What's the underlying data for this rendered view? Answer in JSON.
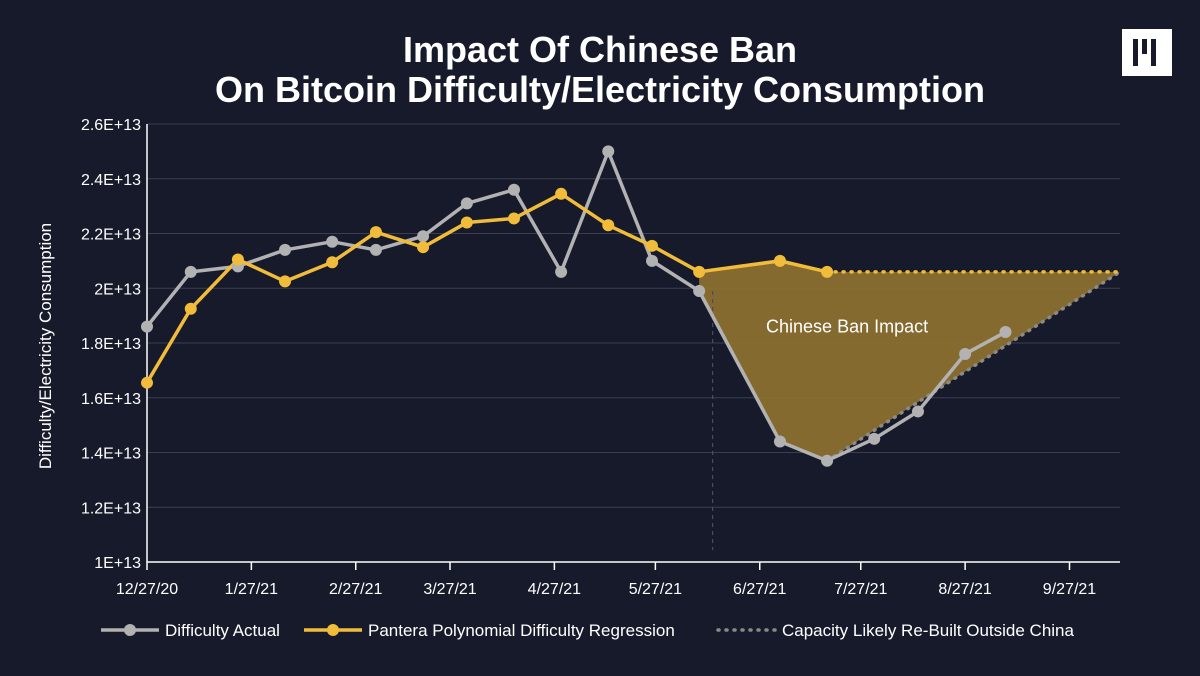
{
  "title_lines": [
    "Impact Of Chinese Ban",
    "On Bitcoin Difficulty/Electricity Consumption"
  ],
  "logo": {
    "icon": "pantera-logo-icon",
    "color": "#ffffff"
  },
  "colors": {
    "background": "#161a2b",
    "difficulty_actual": "#b2b2b2",
    "regression": "#f2bc3b",
    "capacity": "#8a8a8a",
    "impact_fill": "#8b6f2f",
    "grid": "#3a3e4e"
  },
  "chart_data": {
    "type": "line",
    "title": "Impact Of Chinese Ban On Bitcoin Difficulty/Electricity Consumption",
    "ylabel": "Difficulty/Electricity Consumption",
    "xlabel": "",
    "x_type": "date",
    "xlim": [
      "2020-12-27",
      "2021-10-12"
    ],
    "ylim": [
      10000000000000.0,
      26000000000000.0
    ],
    "grid": true,
    "legend_position": "bottom",
    "x_ticks": [
      {
        "date": "2020-12-27",
        "label": "12/27/20"
      },
      {
        "date": "2021-01-27",
        "label": "1/27/21"
      },
      {
        "date": "2021-02-27",
        "label": "2/27/21"
      },
      {
        "date": "2021-03-27",
        "label": "3/27/21"
      },
      {
        "date": "2021-04-27",
        "label": "4/27/21"
      },
      {
        "date": "2021-05-27",
        "label": "5/27/21"
      },
      {
        "date": "2021-06-27",
        "label": "6/27/21"
      },
      {
        "date": "2021-07-27",
        "label": "7/27/21"
      },
      {
        "date": "2021-08-27",
        "label": "8/27/21"
      },
      {
        "date": "2021-09-27",
        "label": "9/27/21"
      }
    ],
    "y_ticks": [
      {
        "value": 10000000000000.0,
        "label": "1E+13"
      },
      {
        "value": 12000000000000.0,
        "label": "1.2E+13"
      },
      {
        "value": 14000000000000.0,
        "label": "1.4E+13"
      },
      {
        "value": 16000000000000.0,
        "label": "1.6E+13"
      },
      {
        "value": 18000000000000.0,
        "label": "1.8E+13"
      },
      {
        "value": 20000000000000.0,
        "label": "2E+13"
      },
      {
        "value": 22000000000000.0,
        "label": "2.2E+13"
      },
      {
        "value": 24000000000000.0,
        "label": "2.4E+13"
      },
      {
        "value": 26000000000000.0,
        "label": "2.6E+13"
      }
    ],
    "ban_date": "2021-06-13",
    "annotation": {
      "text": "Chinese Ban Impact",
      "date": "2021-07-17",
      "value": 18600000000000.0
    },
    "series": [
      {
        "name": "Difficulty Actual",
        "key": "difficulty_actual",
        "points": [
          [
            "2020-12-27",
            18600000000000.0
          ],
          [
            "2021-01-09",
            20600000000000.0
          ],
          [
            "2021-01-23",
            20800000000000.0
          ],
          [
            "2021-02-06",
            21400000000000.0
          ],
          [
            "2021-02-20",
            21700000000000.0
          ],
          [
            "2021-03-05",
            21400000000000.0
          ],
          [
            "2021-03-19",
            21900000000000.0
          ],
          [
            "2021-04-01",
            23100000000000.0
          ],
          [
            "2021-04-15",
            23600000000000.0
          ],
          [
            "2021-04-29",
            20600000000000.0
          ],
          [
            "2021-05-13",
            25000000000000.0
          ],
          [
            "2021-05-26",
            21000000000000.0
          ],
          [
            "2021-06-09",
            19900000000000.0
          ],
          [
            "2021-07-03",
            14400000000000.0
          ],
          [
            "2021-07-17",
            13700000000000.0
          ],
          [
            "2021-07-31",
            14500000000000.0
          ],
          [
            "2021-08-13",
            15500000000000.0
          ],
          [
            "2021-08-27",
            17600000000000.0
          ],
          [
            "2021-09-08",
            18400000000000.0
          ]
        ]
      },
      {
        "name": "Pantera Polynomial Difficulty Regression",
        "key": "regression",
        "points": [
          [
            "2020-12-27",
            16550000000000.0
          ],
          [
            "2021-01-09",
            19250000000000.0
          ],
          [
            "2021-01-23",
            21050000000000.0
          ],
          [
            "2021-02-06",
            20250000000000.0
          ],
          [
            "2021-02-20",
            20950000000000.0
          ],
          [
            "2021-03-05",
            22050000000000.0
          ],
          [
            "2021-03-19",
            21500000000000.0
          ],
          [
            "2021-04-01",
            22400000000000.0
          ],
          [
            "2021-04-15",
            22550000000000.0
          ],
          [
            "2021-04-29",
            23450000000000.0
          ],
          [
            "2021-05-13",
            22300000000000.0
          ],
          [
            "2021-05-26",
            21550000000000.0
          ],
          [
            "2021-06-09",
            20600000000000.0
          ],
          [
            "2021-07-03",
            21000000000000.0
          ],
          [
            "2021-07-17",
            20600000000000.0
          ]
        ]
      },
      {
        "name": "Capacity Likely Re-Built Outside China",
        "key": "capacity",
        "points": [
          [
            "2021-07-17",
            13700000000000.0
          ],
          [
            "2021-10-12",
            20600000000000.0
          ]
        ]
      }
    ],
    "regression_extension": [
      [
        "2021-07-17",
        20600000000000.0
      ],
      [
        "2021-10-12",
        20600000000000.0
      ]
    ]
  }
}
